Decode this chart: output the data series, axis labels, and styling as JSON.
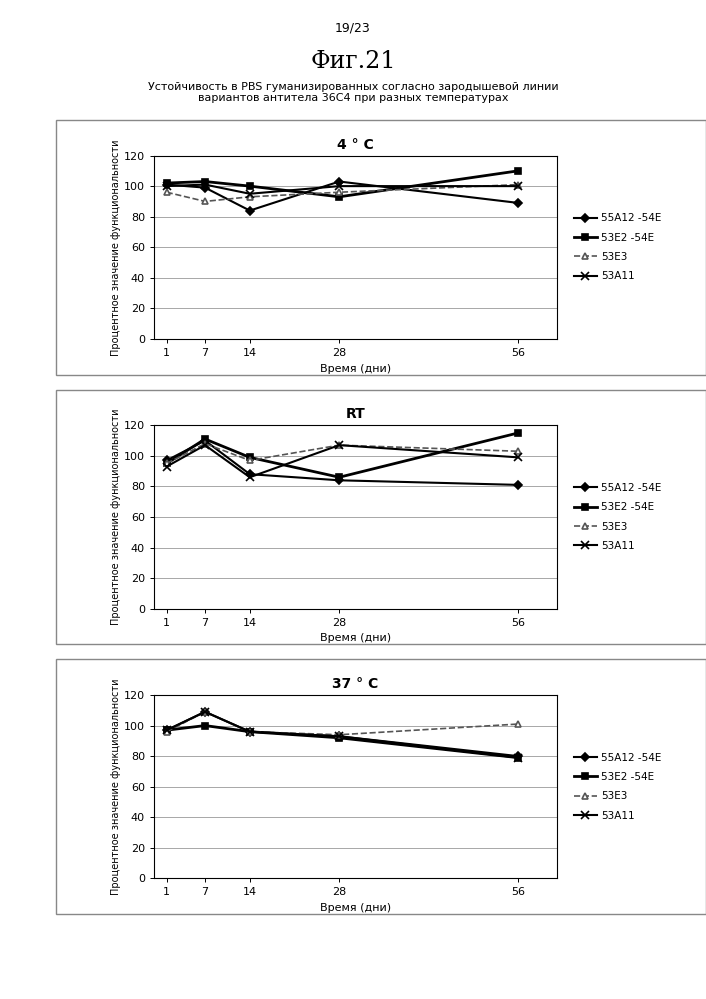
{
  "page_label": "19/23",
  "fig_label": "Фиг.21",
  "main_title_line1": "Устойчивость в PBS гуманизированных согласно зародышевой линии",
  "main_title_line2": "вариантов антитела 36С4 при разных температурах",
  "x_values": [
    1,
    7,
    14,
    28,
    56
  ],
  "x_label": "Время (дни)",
  "y_label": "Процентное значение функциональности",
  "y_lim": [
    0,
    120
  ],
  "y_ticks": [
    0,
    20,
    40,
    60,
    80,
    100,
    120
  ],
  "subplot_titles": [
    "4 ° C",
    "RT",
    "37 ° C"
  ],
  "series": [
    {
      "label": "55A12 -54E",
      "color": "#000000",
      "marker": "D",
      "markersize": 4,
      "linewidth": 1.5,
      "linestyle": "-",
      "mfc": "#000000"
    },
    {
      "label": "53E2 -54E",
      "color": "#000000",
      "marker": "s",
      "markersize": 5,
      "linewidth": 2.0,
      "linestyle": "-",
      "mfc": "#000000"
    },
    {
      "label": "53E3",
      "color": "#555555",
      "marker": "^",
      "markersize": 5,
      "linewidth": 1.2,
      "linestyle": "--",
      "mfc": "#ffffff"
    },
    {
      "label": "53A11",
      "color": "#000000",
      "marker": "x",
      "markersize": 6,
      "linewidth": 1.5,
      "linestyle": "-",
      "mfc": "none"
    }
  ],
  "data_4C": [
    [
      101,
      99,
      84,
      103,
      89
    ],
    [
      102,
      103,
      100,
      93,
      110
    ],
    [
      96,
      90,
      93,
      96,
      101
    ],
    [
      100,
      101,
      95,
      100,
      100
    ]
  ],
  "data_RT": [
    [
      97,
      110,
      88,
      84,
      81
    ],
    [
      95,
      111,
      99,
      86,
      115
    ],
    [
      95,
      108,
      97,
      107,
      103
    ],
    [
      93,
      107,
      86,
      107,
      99
    ]
  ],
  "data_37C": [
    [
      97,
      109,
      96,
      93,
      80
    ],
    [
      97,
      100,
      96,
      92,
      79
    ],
    [
      96,
      109,
      96,
      94,
      101
    ],
    [
      97,
      109,
      96,
      93,
      79
    ]
  ],
  "background_color": "#ffffff",
  "grid_color": "#999999",
  "border_color": "#000000"
}
